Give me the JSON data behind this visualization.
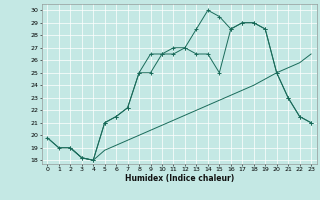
{
  "xlabel": "Humidex (Indice chaleur)",
  "bg_color": "#c4e8e4",
  "grid_color": "#ffffff",
  "line_color": "#1a6b5a",
  "xlim": [
    -0.5,
    23.5
  ],
  "ylim": [
    17.7,
    30.5
  ],
  "yticks": [
    18,
    19,
    20,
    21,
    22,
    23,
    24,
    25,
    26,
    27,
    28,
    29,
    30
  ],
  "xticks": [
    0,
    1,
    2,
    3,
    4,
    5,
    6,
    7,
    8,
    9,
    10,
    11,
    12,
    13,
    14,
    15,
    16,
    17,
    18,
    19,
    20,
    21,
    22,
    23
  ],
  "series": [
    {
      "name": "diagonal_no_marker",
      "x": [
        0,
        1,
        2,
        3,
        4,
        5,
        6,
        7,
        8,
        9,
        10,
        11,
        12,
        13,
        14,
        15,
        16,
        17,
        18,
        19,
        20,
        21,
        22,
        23
      ],
      "y": [
        19.8,
        19.0,
        19.0,
        18.2,
        18.0,
        18.8,
        19.2,
        19.6,
        20.0,
        20.4,
        20.8,
        21.2,
        21.6,
        22.0,
        22.4,
        22.8,
        23.2,
        23.6,
        24.0,
        24.5,
        25.0,
        25.4,
        25.8,
        26.5
      ],
      "marker": false
    },
    {
      "name": "middle_curve_markers",
      "x": [
        0,
        1,
        2,
        3,
        4,
        5,
        6,
        7,
        8,
        9,
        10,
        11,
        12,
        13,
        14,
        15,
        16,
        17,
        18,
        19,
        20,
        21,
        22,
        23
      ],
      "y": [
        19.8,
        19.0,
        19.0,
        18.2,
        18.0,
        21.0,
        21.5,
        22.2,
        25.0,
        26.5,
        26.5,
        27.0,
        27.0,
        26.5,
        26.5,
        25.0,
        28.5,
        29.0,
        29.0,
        28.5,
        25.0,
        23.0,
        21.5,
        21.0
      ],
      "marker": true
    },
    {
      "name": "top_curve_markers",
      "x": [
        2,
        3,
        4,
        5,
        6,
        7,
        8,
        9,
        10,
        11,
        12,
        13,
        14,
        15,
        16,
        17,
        18,
        19,
        20,
        21,
        22,
        23
      ],
      "y": [
        19.0,
        18.2,
        18.0,
        21.0,
        21.5,
        22.2,
        25.0,
        25.0,
        26.5,
        26.5,
        27.0,
        28.5,
        30.0,
        29.5,
        28.5,
        29.0,
        29.0,
        28.5,
        25.0,
        23.0,
        21.5,
        21.0
      ],
      "marker": true
    }
  ]
}
